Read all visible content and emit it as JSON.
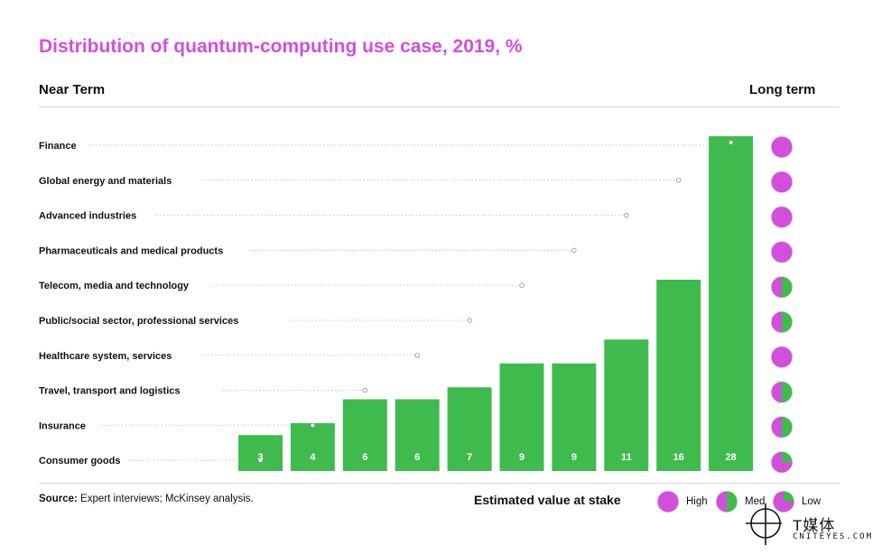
{
  "header": {
    "title": "Distribution of quantum-computing use case, 2019, %",
    "near_term": "Near Term",
    "long_term": "Long term"
  },
  "colors": {
    "bar": "#3fbb4e",
    "high": "#d24fdc",
    "low": "#3fbb4e"
  },
  "chart_data": {
    "type": "bar",
    "title": "Distribution of quantum-computing use case, 2019, %",
    "categories": [
      "Finance",
      "Global energy and materials",
      "Advanced industries",
      "Pharmaceuticals and medical products",
      "Telecom, media and technology",
      "Public/social sector, professional services",
      "Healthcare system, services",
      "Travel, transport and logistics",
      "Insurance",
      "Consumer goods"
    ],
    "bars": [
      {
        "label": "3",
        "value": 3,
        "category_index": 9
      },
      {
        "label": "4",
        "value": 4,
        "category_index": 8
      },
      {
        "label": "6",
        "value": 6,
        "category_index": 7
      },
      {
        "label": "6",
        "value": 6,
        "category_index": 6
      },
      {
        "label": "7",
        "value": 7,
        "category_index": 5
      },
      {
        "label": "9",
        "value": 9,
        "category_index": 4
      },
      {
        "label": "9",
        "value": 9,
        "category_index": 3
      },
      {
        "label": "11",
        "value": 11,
        "category_index": 2
      },
      {
        "label": "16",
        "value": 16,
        "category_index": 1
      },
      {
        "label": "28",
        "value": 28,
        "category_index": 0
      }
    ],
    "value_at_stake": [
      "High",
      "High",
      "High",
      "High",
      "Med",
      "Med",
      "High",
      "Med",
      "Med",
      "Low"
    ],
    "ylim": [
      0,
      28
    ]
  },
  "footer": {
    "source_label": "Source:",
    "source_text": " Expert interviews; McKinsey analysis."
  },
  "legend": {
    "title": "Estimated value at stake",
    "items": [
      {
        "key": "High",
        "label": "High"
      },
      {
        "key": "Med",
        "label": "Med"
      },
      {
        "key": "Low",
        "label": "Low"
      }
    ]
  },
  "watermark": {
    "cn": "T媒体",
    "en": "CNITEYES.COM"
  }
}
